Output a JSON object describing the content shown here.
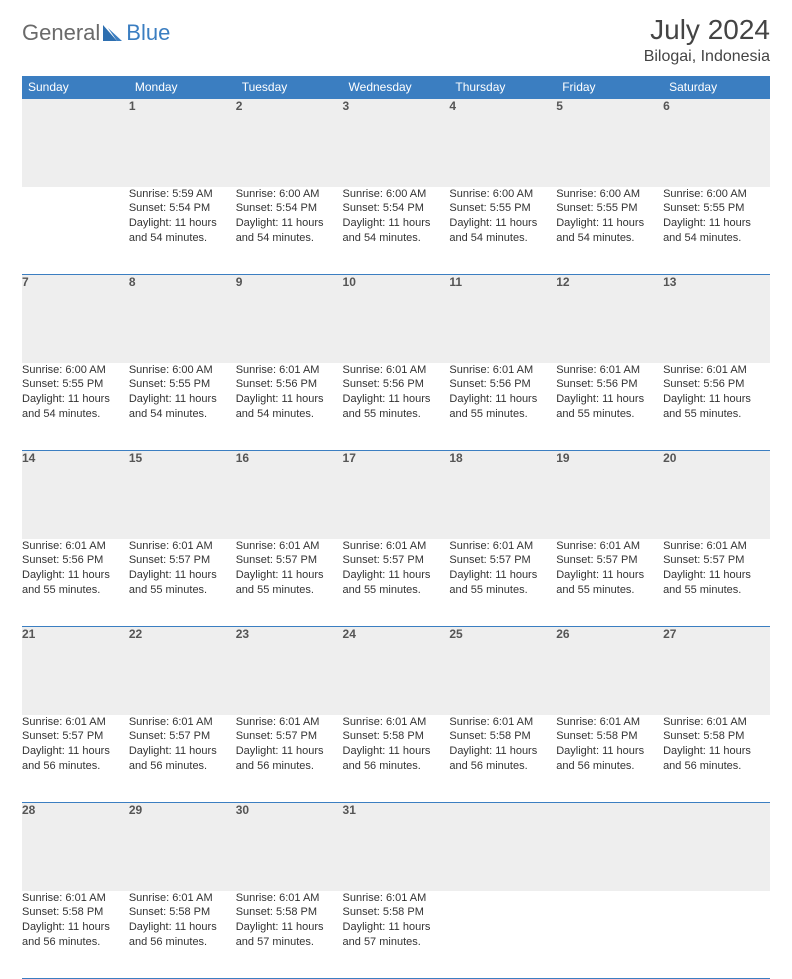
{
  "brand": {
    "part1": "General",
    "part2": "Blue"
  },
  "title": "July 2024",
  "location": "Bilogai, Indonesia",
  "weekdays": [
    "Sunday",
    "Monday",
    "Tuesday",
    "Wednesday",
    "Thursday",
    "Friday",
    "Saturday"
  ],
  "colors": {
    "header_bg": "#3b7ec1",
    "header_text": "#ffffff",
    "daynum_bg": "#eeeeee",
    "rule": "#3b7ec1",
    "body_text": "#333333"
  },
  "weeks": [
    [
      null,
      {
        "n": "1",
        "sr": "5:59 AM",
        "ss": "5:54 PM",
        "dl": "11 hours and 54 minutes."
      },
      {
        "n": "2",
        "sr": "6:00 AM",
        "ss": "5:54 PM",
        "dl": "11 hours and 54 minutes."
      },
      {
        "n": "3",
        "sr": "6:00 AM",
        "ss": "5:54 PM",
        "dl": "11 hours and 54 minutes."
      },
      {
        "n": "4",
        "sr": "6:00 AM",
        "ss": "5:55 PM",
        "dl": "11 hours and 54 minutes."
      },
      {
        "n": "5",
        "sr": "6:00 AM",
        "ss": "5:55 PM",
        "dl": "11 hours and 54 minutes."
      },
      {
        "n": "6",
        "sr": "6:00 AM",
        "ss": "5:55 PM",
        "dl": "11 hours and 54 minutes."
      }
    ],
    [
      {
        "n": "7",
        "sr": "6:00 AM",
        "ss": "5:55 PM",
        "dl": "11 hours and 54 minutes."
      },
      {
        "n": "8",
        "sr": "6:00 AM",
        "ss": "5:55 PM",
        "dl": "11 hours and 54 minutes."
      },
      {
        "n": "9",
        "sr": "6:01 AM",
        "ss": "5:56 PM",
        "dl": "11 hours and 54 minutes."
      },
      {
        "n": "10",
        "sr": "6:01 AM",
        "ss": "5:56 PM",
        "dl": "11 hours and 55 minutes."
      },
      {
        "n": "11",
        "sr": "6:01 AM",
        "ss": "5:56 PM",
        "dl": "11 hours and 55 minutes."
      },
      {
        "n": "12",
        "sr": "6:01 AM",
        "ss": "5:56 PM",
        "dl": "11 hours and 55 minutes."
      },
      {
        "n": "13",
        "sr": "6:01 AM",
        "ss": "5:56 PM",
        "dl": "11 hours and 55 minutes."
      }
    ],
    [
      {
        "n": "14",
        "sr": "6:01 AM",
        "ss": "5:56 PM",
        "dl": "11 hours and 55 minutes."
      },
      {
        "n": "15",
        "sr": "6:01 AM",
        "ss": "5:57 PM",
        "dl": "11 hours and 55 minutes."
      },
      {
        "n": "16",
        "sr": "6:01 AM",
        "ss": "5:57 PM",
        "dl": "11 hours and 55 minutes."
      },
      {
        "n": "17",
        "sr": "6:01 AM",
        "ss": "5:57 PM",
        "dl": "11 hours and 55 minutes."
      },
      {
        "n": "18",
        "sr": "6:01 AM",
        "ss": "5:57 PM",
        "dl": "11 hours and 55 minutes."
      },
      {
        "n": "19",
        "sr": "6:01 AM",
        "ss": "5:57 PM",
        "dl": "11 hours and 55 minutes."
      },
      {
        "n": "20",
        "sr": "6:01 AM",
        "ss": "5:57 PM",
        "dl": "11 hours and 55 minutes."
      }
    ],
    [
      {
        "n": "21",
        "sr": "6:01 AM",
        "ss": "5:57 PM",
        "dl": "11 hours and 56 minutes."
      },
      {
        "n": "22",
        "sr": "6:01 AM",
        "ss": "5:57 PM",
        "dl": "11 hours and 56 minutes."
      },
      {
        "n": "23",
        "sr": "6:01 AM",
        "ss": "5:57 PM",
        "dl": "11 hours and 56 minutes."
      },
      {
        "n": "24",
        "sr": "6:01 AM",
        "ss": "5:58 PM",
        "dl": "11 hours and 56 minutes."
      },
      {
        "n": "25",
        "sr": "6:01 AM",
        "ss": "5:58 PM",
        "dl": "11 hours and 56 minutes."
      },
      {
        "n": "26",
        "sr": "6:01 AM",
        "ss": "5:58 PM",
        "dl": "11 hours and 56 minutes."
      },
      {
        "n": "27",
        "sr": "6:01 AM",
        "ss": "5:58 PM",
        "dl": "11 hours and 56 minutes."
      }
    ],
    [
      {
        "n": "28",
        "sr": "6:01 AM",
        "ss": "5:58 PM",
        "dl": "11 hours and 56 minutes."
      },
      {
        "n": "29",
        "sr": "6:01 AM",
        "ss": "5:58 PM",
        "dl": "11 hours and 56 minutes."
      },
      {
        "n": "30",
        "sr": "6:01 AM",
        "ss": "5:58 PM",
        "dl": "11 hours and 57 minutes."
      },
      {
        "n": "31",
        "sr": "6:01 AM",
        "ss": "5:58 PM",
        "dl": "11 hours and 57 minutes."
      },
      null,
      null,
      null
    ]
  ],
  "labels": {
    "sunrise": "Sunrise: ",
    "sunset": "Sunset: ",
    "daylight": "Daylight: "
  }
}
